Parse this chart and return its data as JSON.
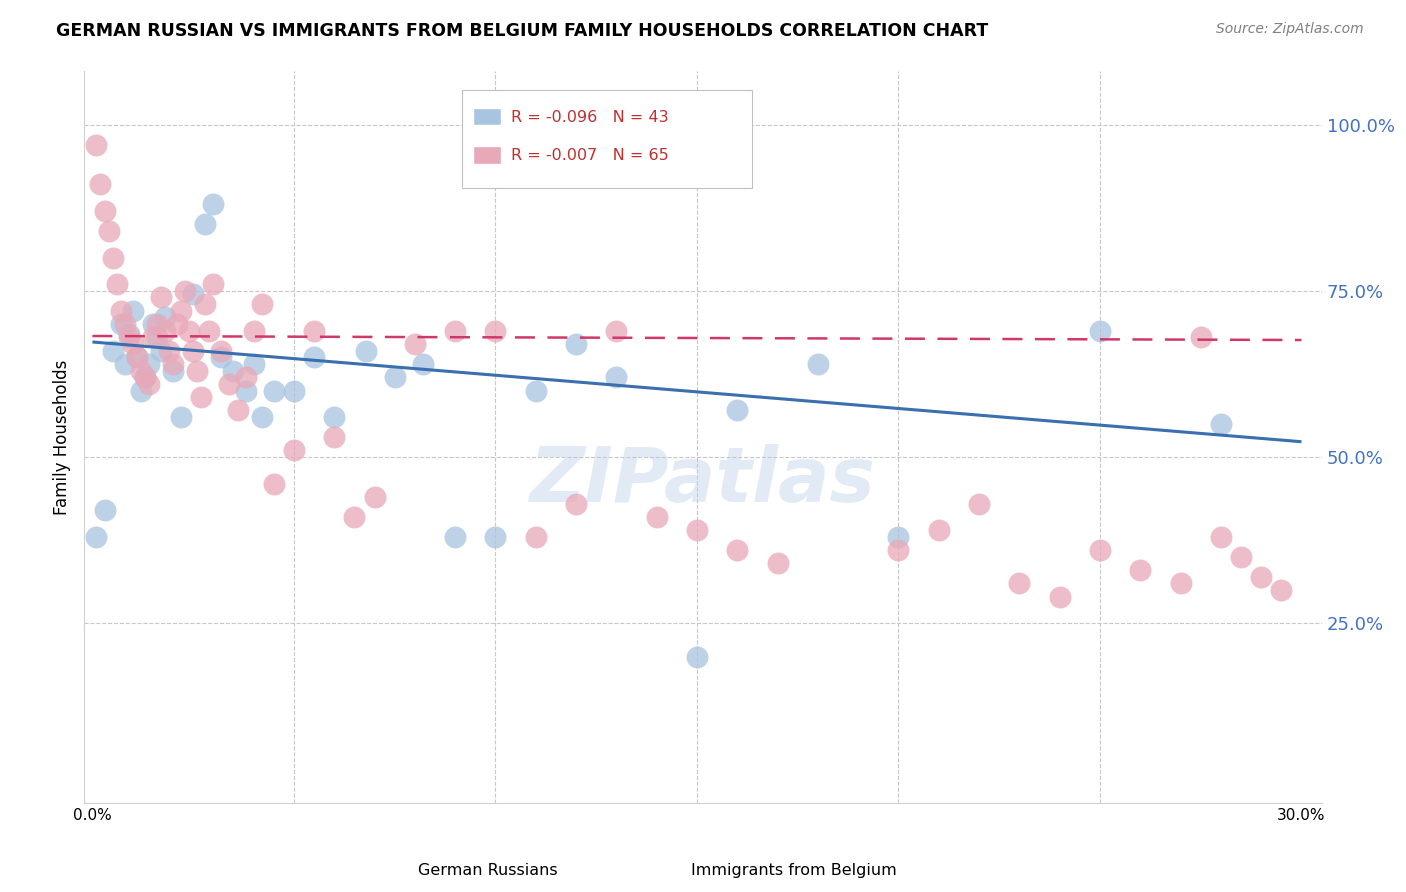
{
  "title": "GERMAN RUSSIAN VS IMMIGRANTS FROM BELGIUM FAMILY HOUSEHOLDS CORRELATION CHART",
  "source": "Source: ZipAtlas.com",
  "ylabel": "Family Households",
  "xlim": [
    -0.002,
    0.305
  ],
  "ylim": [
    -0.02,
    1.08
  ],
  "blue_R": -0.096,
  "blue_N": 43,
  "pink_R": -0.007,
  "pink_N": 65,
  "blue_color": "#a8c4e0",
  "pink_color": "#e8a8b8",
  "blue_line_color": "#3a6fb0",
  "pink_line_color": "#d0386a",
  "tick_color": "#4472c4",
  "grid_color": "#c8c8c8",
  "watermark_color": "#b8cfe8",
  "watermark_text": "ZIPatlas",
  "blue_scatter_x": [
    0.001,
    0.003,
    0.005,
    0.007,
    0.008,
    0.009,
    0.01,
    0.011,
    0.012,
    0.013,
    0.014,
    0.015,
    0.016,
    0.017,
    0.018,
    0.02,
    0.022,
    0.025,
    0.028,
    0.03,
    0.032,
    0.035,
    0.038,
    0.04,
    0.042,
    0.045,
    0.05,
    0.055,
    0.06,
    0.068,
    0.075,
    0.082,
    0.09,
    0.1,
    0.11,
    0.12,
    0.13,
    0.15,
    0.16,
    0.18,
    0.2,
    0.25,
    0.28
  ],
  "blue_scatter_y": [
    0.38,
    0.42,
    0.66,
    0.7,
    0.64,
    0.685,
    0.72,
    0.65,
    0.6,
    0.62,
    0.64,
    0.7,
    0.68,
    0.66,
    0.71,
    0.63,
    0.56,
    0.745,
    0.85,
    0.88,
    0.65,
    0.63,
    0.6,
    0.64,
    0.56,
    0.6,
    0.6,
    0.65,
    0.56,
    0.66,
    0.62,
    0.64,
    0.38,
    0.38,
    0.6,
    0.67,
    0.62,
    0.2,
    0.57,
    0.64,
    0.38,
    0.69,
    0.55
  ],
  "pink_scatter_x": [
    0.001,
    0.002,
    0.003,
    0.004,
    0.005,
    0.006,
    0.007,
    0.008,
    0.009,
    0.01,
    0.011,
    0.012,
    0.013,
    0.014,
    0.015,
    0.016,
    0.017,
    0.018,
    0.019,
    0.02,
    0.021,
    0.022,
    0.023,
    0.024,
    0.025,
    0.026,
    0.027,
    0.028,
    0.029,
    0.03,
    0.032,
    0.034,
    0.036,
    0.038,
    0.04,
    0.042,
    0.045,
    0.05,
    0.055,
    0.06,
    0.065,
    0.07,
    0.08,
    0.09,
    0.1,
    0.11,
    0.12,
    0.13,
    0.14,
    0.15,
    0.16,
    0.17,
    0.2,
    0.21,
    0.22,
    0.23,
    0.24,
    0.25,
    0.26,
    0.27,
    0.275,
    0.28,
    0.285,
    0.29,
    0.295
  ],
  "pink_scatter_y": [
    0.97,
    0.91,
    0.87,
    0.84,
    0.8,
    0.76,
    0.72,
    0.7,
    0.68,
    0.67,
    0.65,
    0.63,
    0.62,
    0.61,
    0.68,
    0.7,
    0.74,
    0.69,
    0.66,
    0.64,
    0.7,
    0.72,
    0.75,
    0.69,
    0.66,
    0.63,
    0.59,
    0.73,
    0.69,
    0.76,
    0.66,
    0.61,
    0.57,
    0.62,
    0.69,
    0.73,
    0.46,
    0.51,
    0.69,
    0.53,
    0.41,
    0.44,
    0.67,
    0.69,
    0.69,
    0.38,
    0.43,
    0.69,
    0.41,
    0.39,
    0.36,
    0.34,
    0.36,
    0.39,
    0.43,
    0.31,
    0.29,
    0.36,
    0.33,
    0.31,
    0.68,
    0.38,
    0.35,
    0.32,
    0.3
  ],
  "blue_trend_x": [
    0.0,
    0.3
  ],
  "blue_trend_y": [
    0.673,
    0.523
  ],
  "pink_trend_x": [
    0.0,
    0.3
  ],
  "pink_trend_y": [
    0.682,
    0.676
  ]
}
